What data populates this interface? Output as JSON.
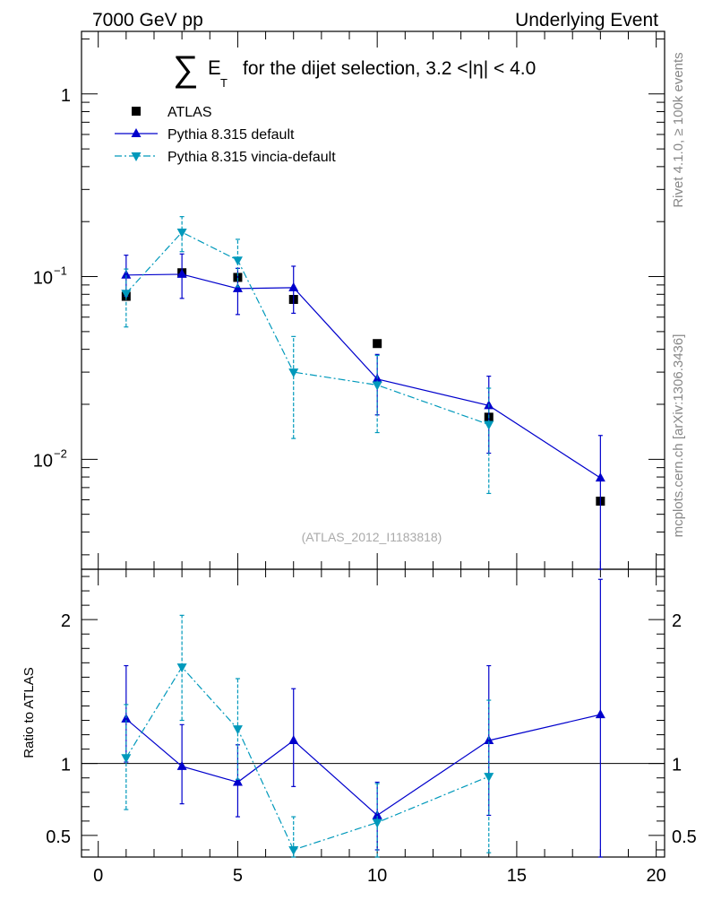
{
  "header": {
    "left": "7000 GeV pp",
    "right": "Underlying Event"
  },
  "side_labels": {
    "rivet": "Rivet 4.1.0, ≥ 100k events",
    "mcplots": "mcplots.cern.ch [arXiv:1306.3436]"
  },
  "title": {
    "sum_symbol": "∑",
    "e": "E",
    "t_sub": "T",
    "rest": "for the dijet selection, 3.2 <|η| < 4.0"
  },
  "watermark": "(ATLAS_2012_I1183818)",
  "chart_data": [
    {
      "type": "scatter",
      "panel": "main",
      "yscale": "log",
      "xlim": [
        -0.6,
        20.3
      ],
      "ylim": [
        0.0025,
        2.2
      ],
      "yticks": [
        {
          "value": 1,
          "label": "1"
        },
        {
          "value": 0.1,
          "label": "10^-1",
          "base": "10",
          "exp": "−1"
        },
        {
          "value": 0.01,
          "label": "10^-2",
          "base": "10",
          "exp": "−2"
        }
      ],
      "legend": {
        "position": "top-left",
        "entries": [
          "ATLAS",
          "Pythia 8.315 default",
          "Pythia 8.315 vincia-default"
        ]
      },
      "series": [
        {
          "name": "ATLAS",
          "style": "square",
          "color": "#000000",
          "x": [
            1,
            3,
            5,
            7,
            10,
            14,
            18
          ],
          "y": [
            0.078,
            0.105,
            0.099,
            0.075,
            0.043,
            0.017,
            0.0059
          ]
        },
        {
          "name": "Pythia 8.315 default",
          "style": "triangle-up",
          "line": "solid",
          "color": "#0000cc",
          "x": [
            1,
            3,
            5,
            7,
            10,
            14,
            18
          ],
          "y": [
            0.102,
            0.103,
            0.086,
            0.087,
            0.0275,
            0.0197,
            0.0079
          ],
          "ylow": [
            0.078,
            0.076,
            0.062,
            0.063,
            0.0175,
            0.0108,
            0.0025
          ],
          "yhigh": [
            0.131,
            0.133,
            0.111,
            0.114,
            0.0375,
            0.0285,
            0.0135
          ]
        },
        {
          "name": "Pythia 8.315 vincia-default",
          "style": "triangle-down",
          "line": "dashdot",
          "color": "#0099bb",
          "x": [
            1,
            3,
            5,
            7,
            10,
            14,
            18
          ],
          "y": [
            0.081,
            0.175,
            0.123,
            0.03,
            0.0255,
            0.0155,
            null
          ],
          "ylow": [
            0.053,
            0.137,
            0.088,
            0.013,
            0.014,
            0.0065,
            null
          ],
          "yhigh": [
            0.11,
            0.213,
            0.16,
            0.047,
            0.037,
            0.0245,
            null
          ]
        }
      ]
    },
    {
      "type": "scatter",
      "panel": "ratio",
      "ylabel": "Ratio to ATLAS",
      "xlim": [
        -0.6,
        20.3
      ],
      "ylim": [
        0.35,
        2.35
      ],
      "xticks": [
        0,
        5,
        10,
        15,
        20
      ],
      "yticks": [
        0.5,
        1,
        2
      ],
      "reference_line": 1,
      "series": [
        {
          "name": "Pythia 8.315 default",
          "style": "triangle-up",
          "line": "solid",
          "color": "#0000cc",
          "x": [
            1,
            3,
            5,
            7,
            10,
            14,
            18
          ],
          "y": [
            1.31,
            0.98,
            0.87,
            1.16,
            0.64,
            1.16,
            1.34
          ],
          "ylow": [
            1.01,
            0.72,
            0.63,
            0.84,
            0.4,
            0.64,
            0.35
          ],
          "yhigh": [
            1.68,
            1.27,
            1.13,
            1.52,
            0.87,
            1.68,
            2.28
          ]
        },
        {
          "name": "Pythia 8.315 vincia-default",
          "style": "triangle-down",
          "line": "dashdot",
          "color": "#0099bb",
          "x": [
            1,
            3,
            5,
            7,
            10,
            14
          ],
          "y": [
            1.04,
            1.67,
            1.24,
            0.4,
            0.59,
            0.91
          ],
          "ylow": [
            0.68,
            1.3,
            0.89,
            0.35,
            0.35,
            0.38
          ],
          "yhigh": [
            1.41,
            2.03,
            1.59,
            0.63,
            0.86,
            1.44
          ]
        }
      ]
    }
  ]
}
